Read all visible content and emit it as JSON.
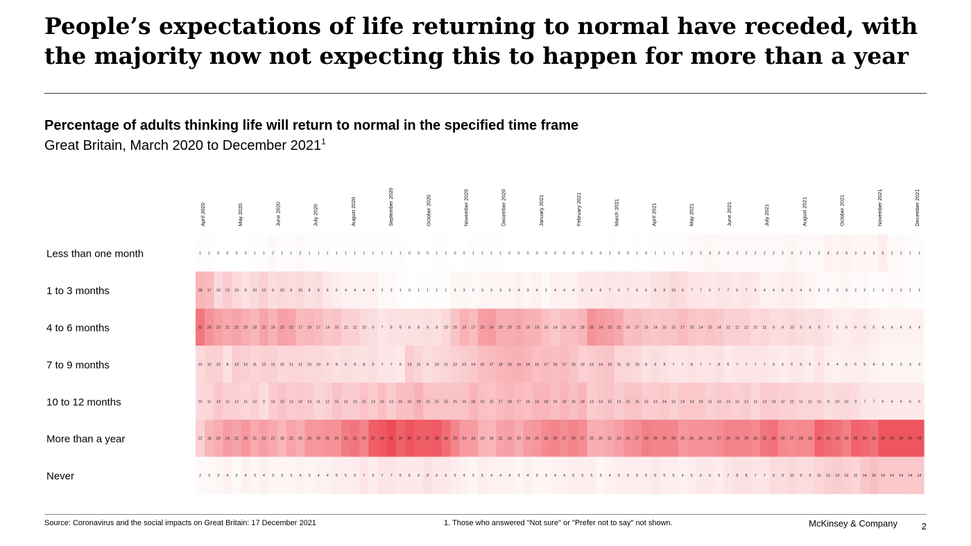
{
  "headline": "People’s expectations of life returning to normal have receded, with the majority now not expecting this to happen for more than a year",
  "chart_title": "Percentage of adults thinking life will return to normal in the specified time frame",
  "chart_subtitle": "Great Britain, March 2020 to December 2021",
  "chart_subtitle_footnote": "1",
  "footer": {
    "source": "Source: Coronavirus and the social impacts on Great Britain: 17 December 2021",
    "note": "1.    Those who answered \"Not sure\" or \"Prefer not to say\" not shown.",
    "brand": "McKinsey & Company",
    "page": "2"
  },
  "colors": {
    "low": "#ffffff",
    "high": "#ee4b55"
  },
  "chart_data": {
    "type": "heatmap",
    "title": "Percentage of adults thinking life will return to normal in the specified time frame",
    "subtitle": "Great Britain, March 2020 to December 2021",
    "month_labels": [
      "April 2020",
      "May 2020",
      "June 2020",
      "July 2020",
      "August 2020",
      "September 2020",
      "October 2020",
      "November 2020",
      "December 2020",
      "January 2021",
      "February 2021",
      "March 2021",
      "April 2021",
      "May 2021",
      "June 2021",
      "July 2021",
      "August 2021",
      "October 2021",
      "November 2021",
      "December 2021"
    ],
    "rows": [
      {
        "name": "Less than one month",
        "values": [
          1,
          1,
          0,
          0,
          0,
          0,
          1,
          1,
          2,
          1,
          1,
          2,
          1,
          1,
          1,
          1,
          1,
          1,
          1,
          1,
          1,
          1,
          1,
          0,
          0,
          0,
          1,
          1,
          0,
          0,
          1,
          1,
          1,
          1,
          0,
          0,
          0,
          0,
          0,
          0,
          0,
          0,
          0,
          0,
          0,
          1,
          0,
          0,
          1,
          0,
          1,
          1,
          1,
          1,
          2,
          2,
          3,
          2,
          2,
          2,
          2,
          2,
          2,
          2,
          2,
          3,
          2,
          2,
          2,
          4,
          3,
          4,
          3,
          3,
          3,
          5,
          2,
          2,
          1,
          1
        ]
      },
      {
        "name": "1 to 3 months",
        "values": [
          18,
          17,
          10,
          13,
          10,
          8,
          10,
          12,
          9,
          10,
          9,
          10,
          8,
          9,
          6,
          5,
          4,
          4,
          4,
          4,
          2,
          2,
          1,
          0,
          1,
          1,
          1,
          1,
          3,
          3,
          2,
          3,
          3,
          3,
          3,
          4,
          3,
          4,
          2,
          4,
          4,
          4,
          6,
          6,
          6,
          7,
          6,
          7,
          6,
          6,
          8,
          8,
          10,
          9,
          7,
          7,
          6,
          7,
          7,
          6,
          7,
          6,
          4,
          4,
          5,
          5,
          4,
          3,
          2,
          2,
          2,
          3,
          2,
          2,
          1,
          1,
          2,
          2,
          1,
          1
        ]
      },
      {
        "name": "4 to 6 months",
        "values": [
          32,
          26,
          23,
          21,
          22,
          20,
          18,
          22,
          19,
          23,
          22,
          17,
          18,
          17,
          14,
          15,
          12,
          12,
          10,
          9,
          7,
          8,
          8,
          8,
          8,
          9,
          8,
          10,
          15,
          19,
          17,
          23,
          24,
          20,
          20,
          21,
          19,
          19,
          16,
          14,
          16,
          16,
          18,
          26,
          24,
          23,
          21,
          16,
          17,
          15,
          14,
          15,
          15,
          17,
          15,
          14,
          15,
          14,
          12,
          12,
          12,
          10,
          11,
          9,
          9,
          10,
          9,
          8,
          9,
          7,
          5,
          5,
          6,
          6,
          5,
          4,
          4,
          4,
          4,
          4
        ]
      },
      {
        "name": "7 to 9 months",
        "values": [
          10,
          12,
          12,
          8,
          13,
          12,
          11,
          12,
          12,
          10,
          11,
          11,
          10,
          10,
          9,
          8,
          9,
          8,
          8,
          9,
          7,
          7,
          6,
          13,
          11,
          9,
          10,
          11,
          12,
          13,
          14,
          16,
          17,
          18,
          19,
          19,
          18,
          16,
          17,
          16,
          17,
          15,
          12,
          13,
          14,
          15,
          11,
          11,
          10,
          8,
          9,
          8,
          7,
          7,
          8,
          7,
          7,
          8,
          6,
          7,
          7,
          7,
          7,
          6,
          5,
          6,
          6,
          5,
          7,
          5,
          4,
          5,
          5,
          5,
          4,
          3,
          3,
          3,
          3,
          3
        ]
      },
      {
        "name": "10 to 12 months",
        "values": [
          10,
          11,
          14,
          12,
          12,
          11,
          12,
          9,
          13,
          15,
          13,
          14,
          13,
          11,
          12,
          15,
          13,
          13,
          15,
          13,
          16,
          13,
          16,
          16,
          19,
          15,
          15,
          15,
          15,
          15,
          18,
          16,
          15,
          17,
          18,
          17,
          16,
          18,
          18,
          16,
          18,
          16,
          18,
          13,
          14,
          15,
          13,
          15,
          15,
          13,
          13,
          14,
          12,
          14,
          14,
          14,
          12,
          13,
          13,
          12,
          13,
          11,
          13,
          13,
          12,
          12,
          11,
          11,
          11,
          9,
          10,
          10,
          9,
          7,
          7,
          6,
          6,
          6,
          6,
          6
        ]
      },
      {
        "name": "More than a year",
        "values": [
          12,
          18,
          20,
          24,
          22,
          25,
          21,
          23,
          21,
          18,
          22,
          20,
          25,
          25,
          26,
          26,
          31,
          32,
          29,
          37,
          38,
          41,
          36,
          39,
          37,
          37,
          38,
          34,
          29,
          24,
          24,
          19,
          18,
          22,
          23,
          20,
          24,
          25,
          28,
          29,
          27,
          29,
          27,
          20,
          20,
          21,
          23,
          26,
          27,
          30,
          29,
          29,
          29,
          25,
          26,
          26,
          26,
          27,
          29,
          29,
          29,
          28,
          32,
          33,
          28,
          27,
          28,
          28,
          36,
          34,
          33,
          30,
          36,
          35,
          33,
          39,
          39,
          39,
          39,
          39
        ]
      },
      {
        "name": "Never",
        "values": [
          2,
          2,
          3,
          4,
          2,
          4,
          3,
          4,
          3,
          3,
          3,
          4,
          3,
          4,
          4,
          5,
          5,
          5,
          7,
          5,
          7,
          7,
          6,
          6,
          6,
          8,
          6,
          6,
          5,
          4,
          3,
          5,
          4,
          4,
          4,
          3,
          4,
          3,
          3,
          4,
          4,
          5,
          5,
          5,
          3,
          4,
          5,
          5,
          5,
          5,
          6,
          5,
          5,
          4,
          5,
          6,
          6,
          5,
          7,
          8,
          8,
          7,
          7,
          9,
          9,
          10,
          9,
          9,
          11,
          12,
          13,
          12,
          11,
          14,
          16,
          14,
          14,
          14,
          14,
          14
        ]
      }
    ]
  }
}
